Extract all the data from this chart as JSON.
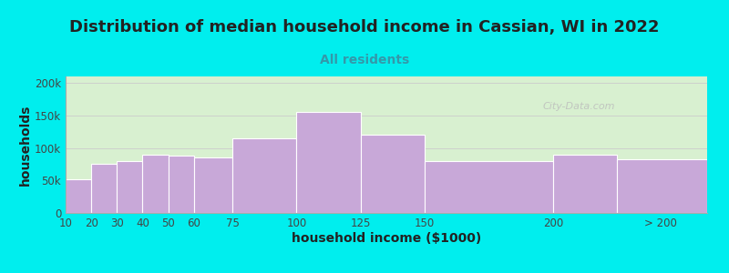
{
  "title": "Distribution of median household income in Cassian, WI in 2022",
  "subtitle": "All residents",
  "xlabel": "household income ($1000)",
  "ylabel": "households",
  "background_color": "#00EEEE",
  "plot_bg_left": "#d8f0d0",
  "plot_bg_right": "#f0f0f8",
  "bar_color": "#c8a8d8",
  "bar_edge_color": "#ffffff",
  "categories": [
    "10",
    "20",
    "30",
    "40",
    "50",
    "60",
    "75",
    "100",
    "125",
    "150",
    "200",
    "> 200"
  ],
  "bar_lefts": [
    10,
    20,
    30,
    40,
    50,
    60,
    75,
    100,
    125,
    150,
    200,
    225
  ],
  "bar_widths": [
    10,
    10,
    10,
    10,
    10,
    15,
    25,
    25,
    25,
    50,
    25,
    35
  ],
  "values": [
    52000,
    75000,
    80000,
    90000,
    88000,
    85000,
    115000,
    155000,
    120000,
    80000,
    90000,
    83000
  ],
  "xlim": [
    10,
    260
  ],
  "ylim": [
    0,
    210000
  ],
  "yticks": [
    0,
    50000,
    100000,
    150000,
    200000
  ],
  "ytick_labels": [
    "0",
    "50k",
    "100k",
    "150k",
    "200k"
  ],
  "xtick_positions": [
    10,
    20,
    30,
    40,
    50,
    60,
    75,
    100,
    125,
    150,
    200,
    242
  ],
  "watermark": "City-Data.com",
  "title_fontsize": 13,
  "subtitle_fontsize": 10,
  "axis_label_fontsize": 10,
  "tick_fontsize": 8.5
}
